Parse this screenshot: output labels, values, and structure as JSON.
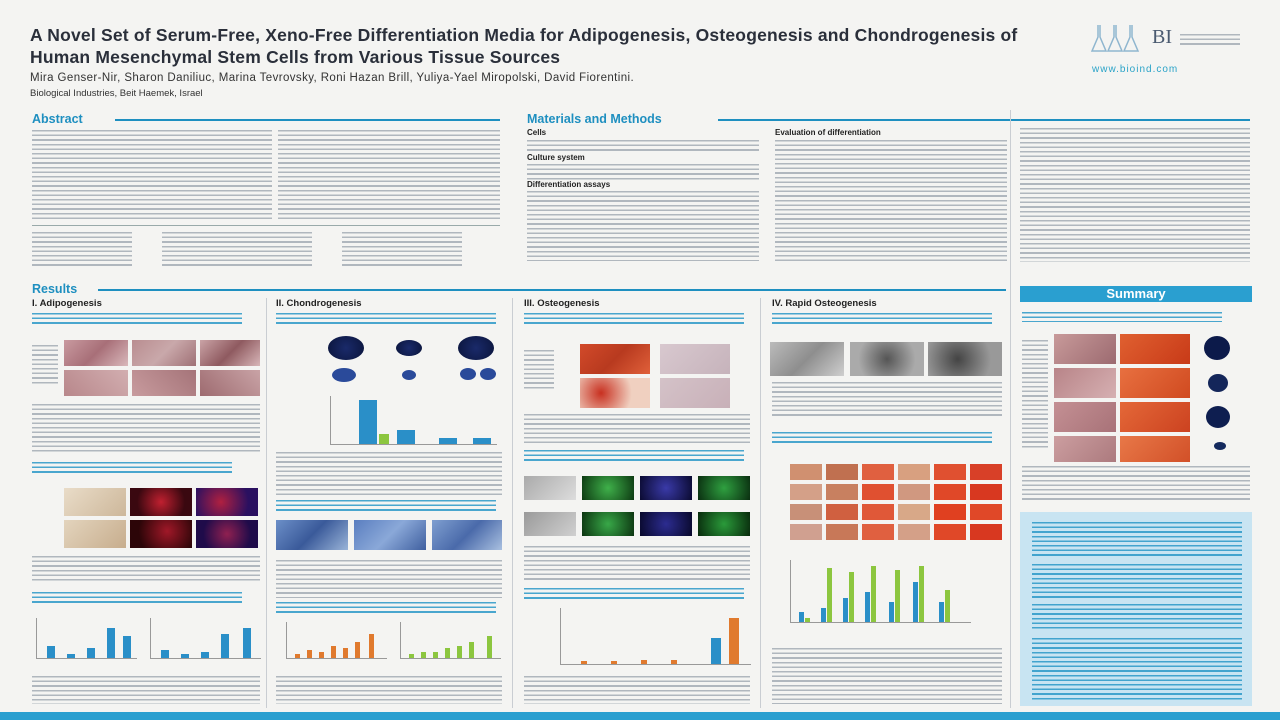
{
  "poster": {
    "title": "A Novel Set of Serum-Free, Xeno-Free Differentiation Media for Adipogenesis, Osteogenesis and Chondrogenesis of Human Mesenchymal Stem Cells from Various Tissue Sources",
    "authors": "Mira Genser-Nir, Sharon Daniliuc, Marina Tevrovsky, Roni Hazan Brill, Yuliya-Yael Miropolski, David Fiorentini.",
    "affiliation": "Biological Industries, Beit Haemek, Israel",
    "logo_text": "BI",
    "logo_url": "www.bioind.com"
  },
  "sections": {
    "abstract": "Abstract",
    "materials": "Materials and Methods",
    "results": "Results",
    "summary": "Summary",
    "materials_subs": [
      "Cells",
      "Culture system",
      "Differentiation assays",
      "Evaluation of differentiation"
    ]
  },
  "results": {
    "adipo": "I. Adipogenesis",
    "chondro": "II. Chondrogenesis",
    "osteo": "III. Osteogenesis",
    "rapid": "IV. Rapid Osteogenesis"
  },
  "colors": {
    "accent": "#1e8fc0",
    "summary_bg": "#c8e4f2",
    "orange": "#e07a2e",
    "green": "#8cc63f"
  }
}
